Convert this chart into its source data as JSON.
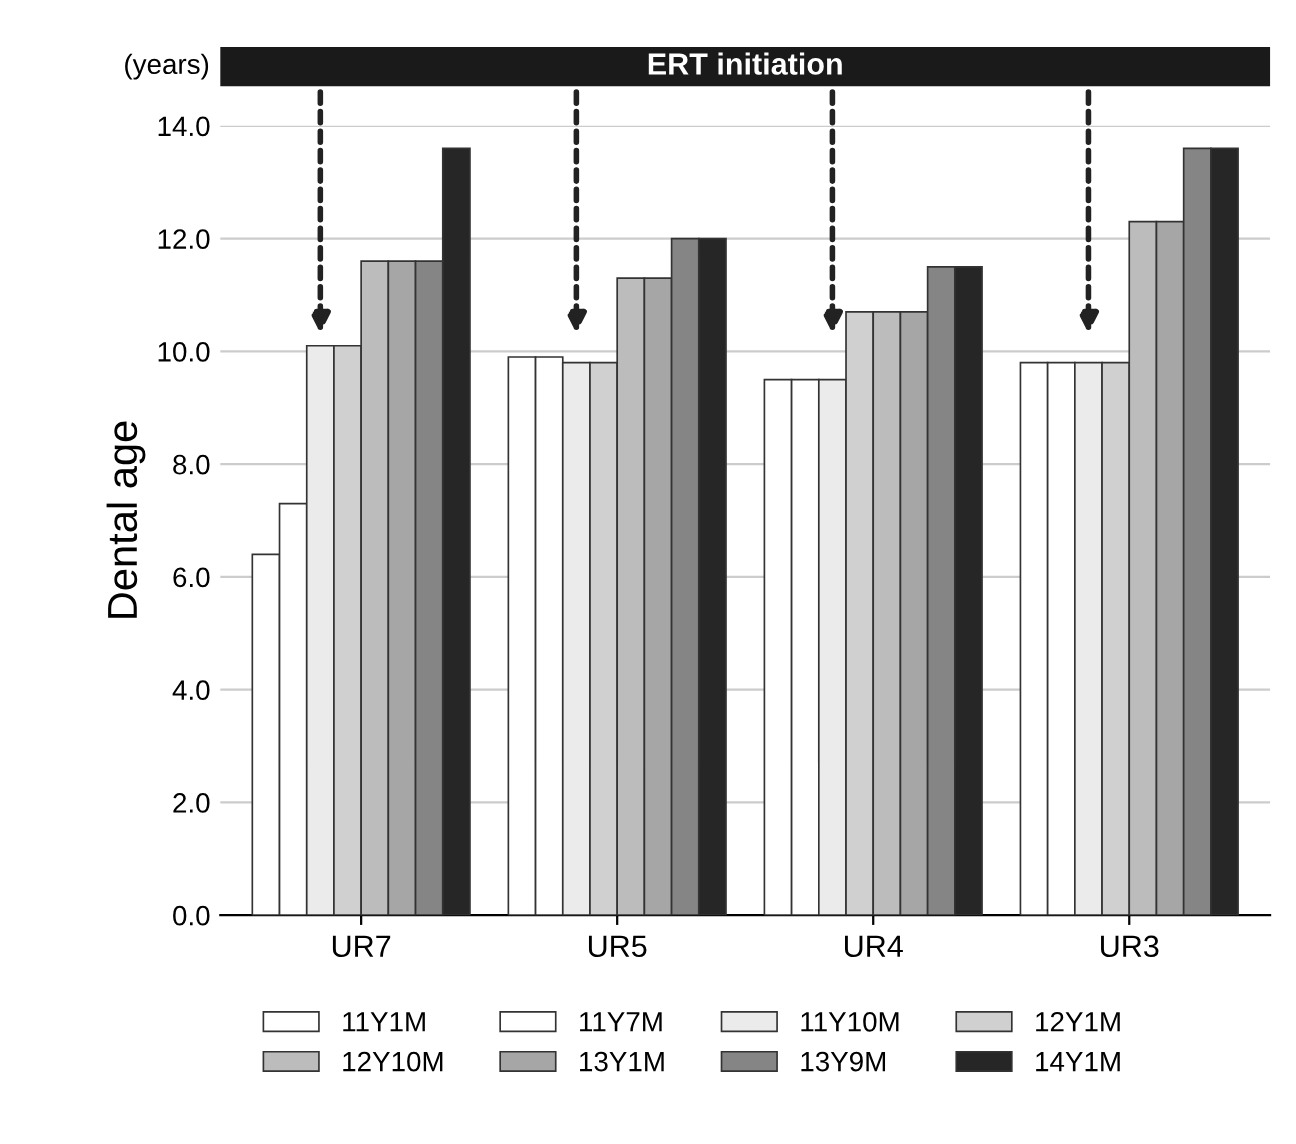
{
  "chart_data": {
    "type": "bar",
    "ylabel": "Dental age",
    "annotations": [
      "(years)",
      "ERT initiation"
    ],
    "categories": [
      "UR7",
      "UR5",
      "UR4",
      "UR3"
    ],
    "series": [
      {
        "name": "11Y1M",
        "color": "#ffffff",
        "values": [
          6.4,
          9.9,
          9.5,
          9.8
        ]
      },
      {
        "name": "11Y7M",
        "color": "#ffffff",
        "values": [
          7.3,
          9.9,
          9.5,
          9.8
        ]
      },
      {
        "name": "11Y10M",
        "color": "#ebebeb",
        "values": [
          10.1,
          9.8,
          9.5,
          9.8
        ]
      },
      {
        "name": "12Y1M",
        "color": "#d0d0d0",
        "values": [
          10.1,
          9.8,
          10.7,
          9.8
        ]
      },
      {
        "name": "12Y10M",
        "color": "#bcbcbc",
        "values": [
          11.6,
          11.3,
          10.7,
          12.3
        ]
      },
      {
        "name": "13Y1M",
        "color": "#a6a6a6",
        "values": [
          11.6,
          11.3,
          10.7,
          12.3
        ]
      },
      {
        "name": "13Y9M",
        "color": "#858585",
        "values": [
          11.6,
          12.0,
          11.5,
          13.6
        ]
      },
      {
        "name": "14Y1M",
        "color": "#262626",
        "values": [
          13.6,
          12.0,
          11.5,
          13.6
        ]
      }
    ],
    "ylim": [
      0,
      14
    ],
    "yticks": [
      {
        "value": 0,
        "label": "0.0"
      },
      {
        "value": 2,
        "label": "2.0"
      },
      {
        "value": 4,
        "label": "4.0"
      },
      {
        "value": 6,
        "label": "6.0"
      },
      {
        "value": 8,
        "label": "8.0"
      },
      {
        "value": 10,
        "label": "10.0"
      },
      {
        "value": 12,
        "label": "12.0"
      },
      {
        "value": 14,
        "label": "14.0"
      }
    ],
    "grid": "y",
    "legend": "bottom"
  }
}
